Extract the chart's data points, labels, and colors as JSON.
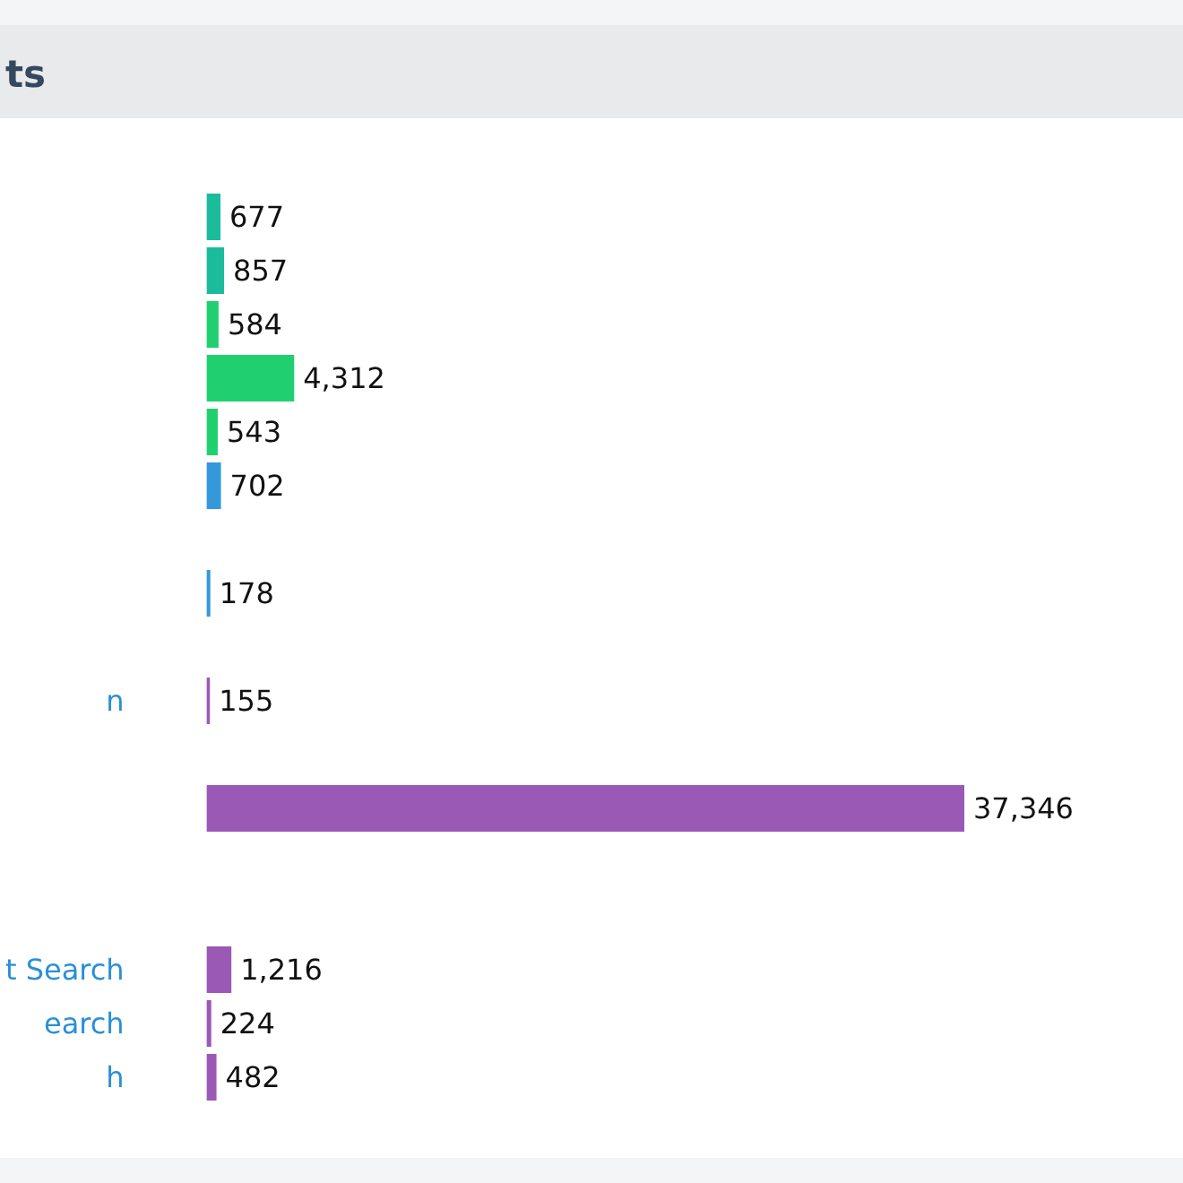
{
  "chart_data": {
    "type": "bar",
    "orientation": "horizontal",
    "title": "ts",
    "categories": [
      null,
      null,
      null,
      null,
      null,
      null,
      null,
      null,
      null,
      "n",
      null,
      null,
      null,
      null,
      "t Search",
      "earch",
      "h"
    ],
    "values": [
      677,
      857,
      584,
      4312,
      543,
      702,
      null,
      178,
      null,
      155,
      null,
      37346,
      null,
      null,
      1216,
      224,
      482
    ],
    "value_labels": [
      "677",
      "857",
      "584",
      "4,312",
      "543",
      "702",
      null,
      "178",
      null,
      "155",
      null,
      "37,346",
      null,
      null,
      "1,216",
      "224",
      "482"
    ],
    "colors": [
      "#1abc9c",
      "#1abc9c",
      "#20d070",
      "#20d070",
      "#20d070",
      "#3498db",
      null,
      "#3498db",
      null,
      "#9b59b6",
      null,
      "#9b59b6",
      null,
      null,
      "#9b59b6",
      "#9b59b6",
      "#9b59b6"
    ]
  }
}
